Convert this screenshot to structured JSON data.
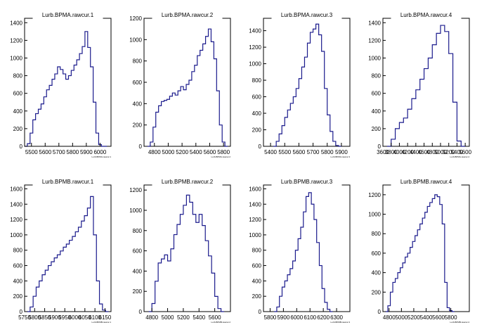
{
  "chart_data": [
    {
      "type": "histogram",
      "title": "Lurb.BPMA.rawcur.1",
      "xlabel": "Lurb.BPMA.rawcur.1",
      "xlim": [
        5450,
        6080
      ],
      "ylim": [
        0,
        1450
      ],
      "xticks": [
        5500,
        5600,
        5700,
        5800,
        5900,
        6000
      ],
      "xtick_labels": [
        "5500",
        "5600",
        "5700",
        "5800",
        "5900",
        "6000"
      ],
      "yticks": [
        0,
        200,
        400,
        600,
        800,
        1000,
        1200,
        1400
      ],
      "ytick_labels": [
        "0",
        "200",
        "400",
        "600",
        "800",
        "1000",
        "1200",
        "1400"
      ],
      "x": [
        5460,
        5480,
        5500,
        5520,
        5540,
        5560,
        5580,
        5600,
        5620,
        5640,
        5660,
        5680,
        5700,
        5720,
        5740,
        5760,
        5780,
        5800,
        5820,
        5840,
        5860,
        5880,
        5900,
        5920,
        5940,
        5960,
        5980,
        6000,
        6020,
        6040
      ],
      "y": [
        0,
        30,
        150,
        300,
        370,
        420,
        480,
        560,
        640,
        690,
        760,
        820,
        900,
        870,
        820,
        760,
        800,
        860,
        920,
        980,
        1050,
        1130,
        1300,
        1120,
        900,
        500,
        150,
        20,
        0,
        0
      ]
    },
    {
      "type": "histogram",
      "title": "Lurb.BPMA.rawcur.2",
      "xlabel": "Lurb.BPMA.rawcur.2",
      "xlim": [
        4650,
        5900
      ],
      "ylim": [
        0,
        1200
      ],
      "xticks": [
        4800,
        5000,
        5200,
        5400,
        5600,
        5800
      ],
      "xtick_labels": [
        "4800",
        "5000",
        "5200",
        "5400",
        "5600",
        "5800"
      ],
      "yticks": [
        0,
        200,
        400,
        600,
        800,
        1000,
        1200
      ],
      "ytick_labels": [
        "0",
        "200",
        "400",
        "600",
        "800",
        "1000",
        "1200"
      ],
      "x": [
        4720,
        4760,
        4800,
        4840,
        4880,
        4920,
        4960,
        5000,
        5040,
        5080,
        5120,
        5160,
        5200,
        5240,
        5280,
        5320,
        5360,
        5400,
        5440,
        5480,
        5520,
        5560,
        5600,
        5640,
        5680,
        5720,
        5760,
        5800,
        5840
      ],
      "y": [
        0,
        40,
        180,
        320,
        380,
        420,
        430,
        440,
        470,
        500,
        480,
        520,
        560,
        530,
        580,
        620,
        700,
        760,
        850,
        900,
        960,
        1030,
        1100,
        980,
        820,
        520,
        200,
        40,
        0
      ]
    },
    {
      "type": "histogram",
      "title": "Lurb.BPMA.rawcur.3",
      "xlabel": "Lurb.BPMA.rawcur.3",
      "xlim": [
        5350,
        5960
      ],
      "ylim": [
        0,
        1550
      ],
      "xticks": [
        5400,
        5500,
        5600,
        5700,
        5800,
        5900
      ],
      "xtick_labels": [
        "5400",
        "5500",
        "5600",
        "5700",
        "5800",
        "5900"
      ],
      "yticks": [
        0,
        200,
        400,
        600,
        800,
        1000,
        1200,
        1400
      ],
      "ytick_labels": [
        "0",
        "200",
        "400",
        "600",
        "800",
        "1000",
        "1200",
        "1400"
      ],
      "x": [
        5430,
        5450,
        5470,
        5490,
        5510,
        5530,
        5550,
        5570,
        5590,
        5610,
        5630,
        5650,
        5670,
        5690,
        5710,
        5730,
        5750,
        5770,
        5790,
        5810,
        5830,
        5850,
        5870,
        5890
      ],
      "y": [
        0,
        60,
        150,
        250,
        350,
        440,
        520,
        600,
        700,
        820,
        960,
        1080,
        1250,
        1380,
        1420,
        1480,
        1350,
        1150,
        700,
        380,
        180,
        60,
        10,
        0
      ]
    },
    {
      "type": "histogram",
      "title": "Lurb.BPMA.rawcur.4",
      "xlabel": "Lurb.BPMA.rawcur.4",
      "xlim": [
        3600,
        5700
      ],
      "ylim": [
        0,
        1450
      ],
      "xticks": [
        3600,
        3800,
        4000,
        4200,
        4400,
        4600,
        4800,
        5000,
        5200,
        5400,
        5600
      ],
      "xtick_labels": [
        "3600",
        "3800",
        "4000",
        "4200",
        "4400",
        "4600",
        "4800",
        "5000",
        "5200",
        "5400",
        "5600"
      ],
      "yticks": [
        0,
        200,
        400,
        600,
        800,
        1000,
        1200,
        1400
      ],
      "ytick_labels": [
        "0",
        "200",
        "400",
        "600",
        "800",
        "1000",
        "1200",
        "1400"
      ],
      "x": [
        3750,
        3850,
        3950,
        4050,
        4150,
        4250,
        4350,
        4450,
        4550,
        4650,
        4750,
        4850,
        4950,
        5050,
        5150,
        5250,
        5350,
        5450,
        5550
      ],
      "y": [
        0,
        80,
        200,
        270,
        320,
        420,
        540,
        640,
        760,
        880,
        1000,
        1150,
        1280,
        1370,
        1300,
        1050,
        500,
        60,
        0
      ]
    },
    {
      "type": "histogram",
      "title": "Lurb.BPMB.rawcur.1",
      "xlabel": "Lurb.BPMB.rawcur.1",
      "xlim": [
        5750,
        6180
      ],
      "ylim": [
        0,
        1650
      ],
      "xticks": [
        5750,
        5800,
        5850,
        5900,
        5950,
        6000,
        6050,
        6100,
        6150
      ],
      "xtick_labels": [
        "5750",
        "5800",
        "5850",
        "5900",
        "5950",
        "6000",
        "6050",
        "6100",
        "6150"
      ],
      "yticks": [
        0,
        200,
        400,
        600,
        800,
        1000,
        1200,
        1400,
        1600
      ],
      "ytick_labels": [
        "0",
        "200",
        "400",
        "600",
        "800",
        "1000",
        "1200",
        "1400",
        "1600"
      ],
      "x": [
        5770,
        5785,
        5800,
        5815,
        5830,
        5845,
        5860,
        5875,
        5890,
        5905,
        5920,
        5935,
        5950,
        5965,
        5980,
        5995,
        6010,
        6025,
        6040,
        6055,
        6070,
        6085,
        6100,
        6115,
        6130,
        6145,
        6160
      ],
      "y": [
        0,
        60,
        200,
        320,
        400,
        480,
        540,
        600,
        650,
        700,
        740,
        790,
        840,
        880,
        930,
        980,
        1040,
        1100,
        1180,
        1250,
        1350,
        1500,
        1000,
        400,
        100,
        20,
        0
      ]
    },
    {
      "type": "histogram",
      "title": "Lurb.BPMB.rawcur.2",
      "xlabel": "Lurb.BPMB.rawcur.2",
      "xlim": [
        4700,
        5800
      ],
      "ylim": [
        0,
        1250
      ],
      "xticks": [
        4800,
        5000,
        5200,
        5400,
        5600
      ],
      "xtick_labels": [
        "4800",
        "5000",
        "5200",
        "5400",
        "5600"
      ],
      "yticks": [
        0,
        200,
        400,
        600,
        800,
        1000,
        1200
      ],
      "ytick_labels": [
        "0",
        "200",
        "400",
        "600",
        "800",
        "1000",
        "1200"
      ],
      "x": [
        4780,
        4820,
        4860,
        4900,
        4940,
        4980,
        5020,
        5060,
        5100,
        5140,
        5180,
        5220,
        5260,
        5300,
        5340,
        5380,
        5420,
        5460,
        5500,
        5540,
        5580,
        5620,
        5660,
        5700
      ],
      "y": [
        0,
        80,
        300,
        480,
        520,
        560,
        500,
        620,
        760,
        860,
        960,
        1050,
        1150,
        1080,
        960,
        880,
        960,
        850,
        700,
        550,
        380,
        150,
        30,
        0
      ]
    },
    {
      "type": "histogram",
      "title": "Lurb.BPMB.rawcur.3",
      "xlabel": "Lurb.BPMB.rawcur.3",
      "xlim": [
        5750,
        6400
      ],
      "ylim": [
        0,
        1650
      ],
      "xticks": [
        5800,
        5900,
        6000,
        6100,
        6200,
        6300
      ],
      "xtick_labels": [
        "5800",
        "5900",
        "6000",
        "6100",
        "6200",
        "6300"
      ],
      "yticks": [
        0,
        200,
        400,
        600,
        800,
        1000,
        1200,
        1400,
        1600
      ],
      "ytick_labels": [
        "0",
        "200",
        "400",
        "600",
        "800",
        "1000",
        "1200",
        "1400",
        "1600"
      ],
      "x": [
        5840,
        5860,
        5880,
        5900,
        5920,
        5940,
        5960,
        5980,
        6000,
        6020,
        6040,
        6060,
        6080,
        6100,
        6120,
        6140,
        6160,
        6180,
        6200,
        6220,
        6240,
        6260
      ],
      "y": [
        0,
        60,
        200,
        320,
        400,
        480,
        560,
        660,
        800,
        950,
        1100,
        1300,
        1500,
        1550,
        1400,
        1200,
        900,
        600,
        300,
        120,
        30,
        0
      ]
    },
    {
      "type": "histogram",
      "title": "Lurb.BPMB.rawcur.4",
      "xlabel": "Lurb.BPMB.rawcur.4",
      "xlim": [
        4700,
        6100
      ],
      "ylim": [
        0,
        1300
      ],
      "xticks": [
        4800,
        5000,
        5200,
        5400,
        5600,
        5800
      ],
      "xtick_labels": [
        "4800",
        "5000",
        "5200",
        "5400",
        "5600",
        "5800"
      ],
      "yticks": [
        0,
        200,
        400,
        600,
        800,
        1000,
        1200
      ],
      "ytick_labels": [
        "0",
        "200",
        "400",
        "600",
        "800",
        "1000",
        "1200"
      ],
      "x": [
        4760,
        4800,
        4840,
        4880,
        4920,
        4960,
        5000,
        5040,
        5080,
        5120,
        5160,
        5200,
        5240,
        5280,
        5320,
        5360,
        5400,
        5440,
        5480,
        5520,
        5560,
        5600,
        5640,
        5680,
        5720,
        5760,
        5800,
        5840
      ],
      "y": [
        0,
        60,
        200,
        300,
        340,
        400,
        450,
        500,
        560,
        600,
        660,
        720,
        780,
        840,
        900,
        960,
        1020,
        1080,
        1120,
        1160,
        1200,
        1180,
        1100,
        900,
        300,
        40,
        10,
        0
      ]
    }
  ]
}
